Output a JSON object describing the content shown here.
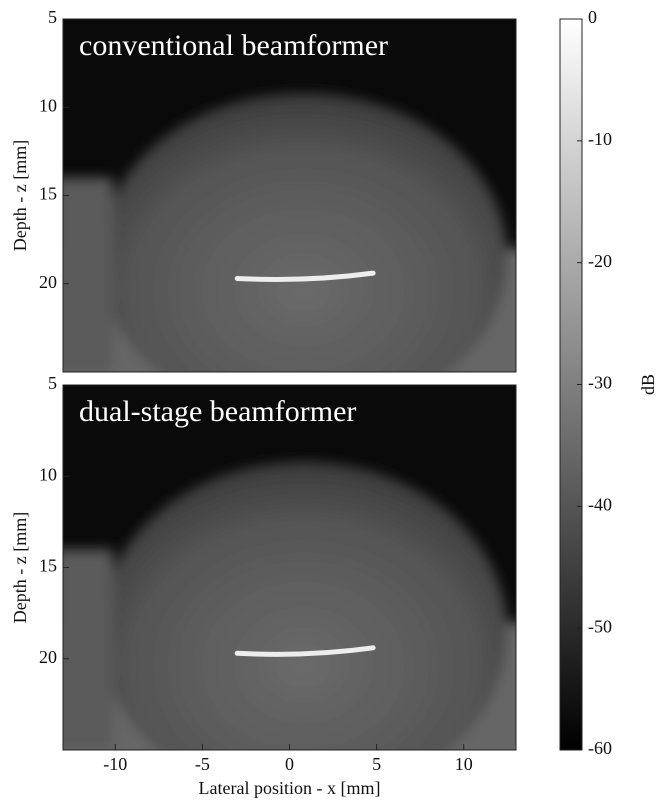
{
  "chart_data": [
    {
      "type": "image",
      "title": "conventional beamformer",
      "xlim": [
        -13,
        13
      ],
      "ylim": [
        5,
        25
      ],
      "yticks": [
        5,
        10,
        15,
        20
      ],
      "ylabel": "Depth - z [mm]"
    },
    {
      "type": "image",
      "title": "dual-stage beamformer",
      "xlim": [
        -13,
        13
      ],
      "ylim": [
        5,
        25
      ],
      "xticks": [
        -10,
        -5,
        0,
        5,
        10
      ],
      "yticks": [
        5,
        10,
        15,
        20
      ],
      "ylabel": "Depth - z [mm]",
      "xlabel": "Lateral position - x [mm]"
    },
    {
      "type": "colorbar",
      "clim": [
        -60,
        0
      ],
      "cticks": [
        0,
        -10,
        -20,
        -30,
        -40,
        -50,
        -60
      ],
      "label": "dB"
    }
  ]
}
